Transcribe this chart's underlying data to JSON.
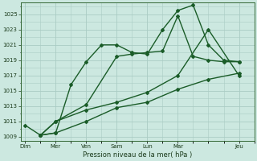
{
  "background_color": "#cce8e0",
  "grid_color": "#aaccc4",
  "line_color": "#1a5c28",
  "xlabel": "Pression niveau de la mer( hPa )",
  "ylim": [
    1008.5,
    1026.5
  ],
  "yticks": [
    1009,
    1011,
    1013,
    1015,
    1017,
    1019,
    1021,
    1023,
    1025
  ],
  "xtick_labels": [
    "Dim",
    "Mer",
    "Ven",
    "Sam",
    "Lun",
    "Mar",
    "Jeu"
  ],
  "xtick_positions": [
    0,
    2,
    4,
    6,
    8,
    10,
    14
  ],
  "xlim": [
    -0.3,
    15.0
  ],
  "lines": [
    {
      "x": [
        0,
        1,
        2,
        3,
        4,
        5,
        6,
        7,
        8,
        9,
        10,
        11,
        12,
        13,
        14
      ],
      "y": [
        1010.5,
        1009.2,
        1009.5,
        1015.8,
        1018.8,
        1021.0,
        1021.0,
        1020.0,
        1019.8,
        1023.0,
        1025.5,
        1026.2,
        1021.0,
        1019.0,
        1018.8
      ],
      "style": "-",
      "marker": "D",
      "markersize": 2.0,
      "linewidth": 1.0
    },
    {
      "x": [
        1,
        2,
        4,
        6,
        8,
        10,
        12,
        14
      ],
      "y": [
        1009.2,
        1009.5,
        1011.0,
        1012.8,
        1013.5,
        1015.2,
        1016.5,
        1017.3
      ],
      "style": "-",
      "marker": "D",
      "markersize": 2.0,
      "linewidth": 1.0
    },
    {
      "x": [
        1,
        2,
        4,
        6,
        8,
        10,
        12,
        14
      ],
      "y": [
        1009.2,
        1011.0,
        1012.5,
        1013.5,
        1014.8,
        1017.0,
        1023.0,
        1017.0
      ],
      "style": "-",
      "marker": "D",
      "markersize": 2.0,
      "linewidth": 1.0
    },
    {
      "x": [
        1,
        2,
        4,
        6,
        7,
        8,
        9,
        10,
        11,
        12,
        13,
        14
      ],
      "y": [
        1009.2,
        1011.0,
        1013.2,
        1019.5,
        1019.8,
        1020.0,
        1020.2,
        1024.8,
        1019.5,
        1019.0,
        1018.8,
        1018.8
      ],
      "style": "-",
      "marker": "D",
      "markersize": 2.0,
      "linewidth": 1.0
    }
  ]
}
